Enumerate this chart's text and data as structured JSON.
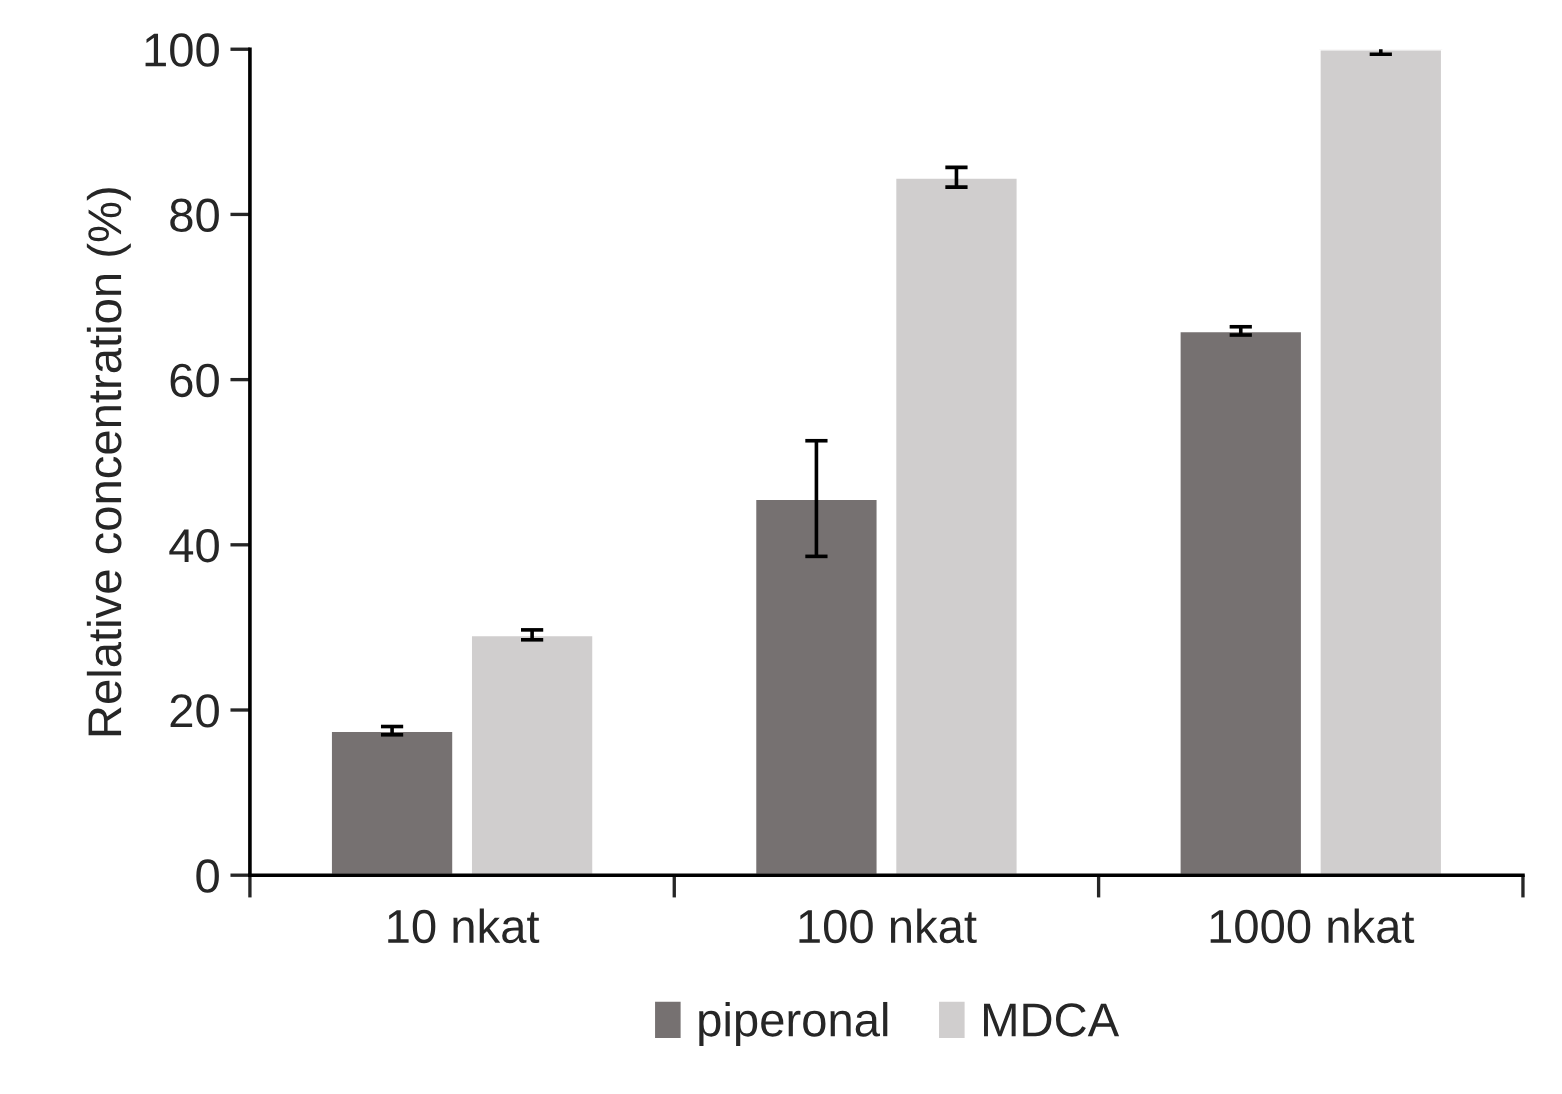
{
  "chart_data": {
    "type": "bar",
    "ylabel": "Relative concentration (%)",
    "categories": [
      "10 nkat",
      "100 nkat",
      "1000 nkat"
    ],
    "series": [
      {
        "name": "piperonal",
        "color": "#767171",
        "values": [
          17.5,
          45.6,
          65.9
        ],
        "errors": [
          0.5,
          7,
          0.5
        ]
      },
      {
        "name": "MDCA",
        "color": "#d0cece",
        "values": [
          29.1,
          84.5,
          100
        ],
        "errors": [
          0.6,
          1.2,
          0.6
        ]
      }
    ],
    "ylim": [
      0,
      100
    ],
    "yticks": [
      0,
      20,
      40,
      60,
      80,
      100
    ],
    "grid": false,
    "legend": "bottom"
  }
}
